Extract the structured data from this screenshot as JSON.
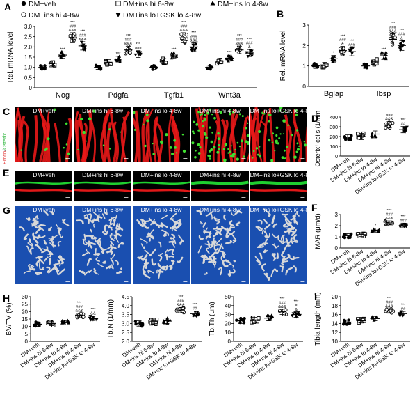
{
  "legend": {
    "items": [
      {
        "label": "DM+veh",
        "marker": "filled-circle"
      },
      {
        "label": "DM+ins hi 6-8w",
        "marker": "open-square"
      },
      {
        "label": "DM+ins lo 4-8w",
        "marker": "filled-triangle"
      },
      {
        "label": "DM+ins hi 4-8w",
        "marker": "open-circle"
      },
      {
        "label": "DM+ins lo+GSK lo 4-8w",
        "marker": "filled-triangle-down"
      }
    ]
  },
  "groups": [
    "DM+veh",
    "DM+ins hi 6-8w",
    "DM+ins lo 4-8w",
    "DM+ins hi 4-8w",
    "DM+ins lo+GSK lo 4-8w"
  ],
  "panels": {
    "A": {
      "letter": "A"
    },
    "B": {
      "letter": "B"
    },
    "C": {
      "letter": "C",
      "stain_red": "Emcn",
      "stain_sep": "/",
      "stain_green": "Osterix"
    },
    "D": {
      "letter": "D"
    },
    "E": {
      "letter": "E"
    },
    "F": {
      "letter": "F"
    },
    "G": {
      "letter": "G"
    },
    "H": {
      "letter": "H"
    },
    "I": {
      "letter": "I"
    }
  },
  "chart_data": [
    {
      "panel": "A",
      "type": "scatter",
      "ylabel": "Rel. mRNA level",
      "ylim": [
        0,
        3.0
      ],
      "yticks": [
        "0",
        "0.5",
        "1.0",
        "1.5",
        "2.0",
        "2.5",
        "3.0"
      ],
      "categories": [
        "Nog",
        "Pdgfa",
        "Tgfb1",
        "Wnt3a"
      ],
      "series": [
        {
          "name": "DM+veh",
          "values": [
            1.0,
            1.0,
            1.0,
            1.0
          ]
        },
        {
          "name": "DM+ins hi 6-8w",
          "values": [
            1.2,
            1.25,
            1.3,
            1.3
          ]
        },
        {
          "name": "DM+ins lo 4-8w",
          "values": [
            1.6,
            1.4,
            1.6,
            1.45
          ]
        },
        {
          "name": "DM+ins hi 4-8w",
          "values": [
            2.45,
            1.85,
            2.45,
            1.85
          ]
        },
        {
          "name": "DM+ins lo+GSK lo 4-8w",
          "values": [
            2.05,
            1.65,
            2.0,
            1.7
          ]
        }
      ],
      "annotations": [
        [
          "",
          "",
          "***",
          "***\n###\n&&&",
          "***\n###\n&&&"
        ],
        [
          "",
          "",
          "***",
          "***\n###\n&&&",
          "***\n###"
        ],
        [
          "",
          "",
          "***",
          "***\n###\n&&&",
          "***\n###\n&&&"
        ],
        [
          "",
          "",
          "***",
          "***\n###\n&&&",
          "***\n###\n&"
        ]
      ]
    },
    {
      "panel": "B",
      "type": "scatter",
      "ylabel": "Rel. mRNA level",
      "ylim": [
        0,
        3
      ],
      "yticks": [
        "0",
        "1",
        "2",
        "3"
      ],
      "categories": [
        "Bglap",
        "Ibsp"
      ],
      "series": [
        {
          "name": "DM+veh",
          "values": [
            1.0,
            1.0
          ]
        },
        {
          "name": "DM+ins hi 6-8w",
          "values": [
            1.05,
            1.2
          ]
        },
        {
          "name": "DM+ins lo 4-8w",
          "values": [
            1.35,
            1.5
          ]
        },
        {
          "name": "DM+ins hi 4-8w",
          "values": [
            1.75,
            2.3
          ]
        },
        {
          "name": "DM+ins lo+GSK lo 4-8w",
          "values": [
            1.7,
            2.0
          ]
        }
      ],
      "annotations": [
        [
          "",
          "",
          "*",
          "***\n###\n&",
          "***\n###"
        ],
        [
          "",
          "",
          "***",
          "***\n###\n&&&",
          "***\n###\n&"
        ]
      ]
    },
    {
      "panel": "D",
      "type": "scatter",
      "ylabel": "Osterix+ cells (1/mm²)",
      "ylim": [
        0,
        400
      ],
      "yticks": [
        "0",
        "100",
        "200",
        "300",
        "400"
      ],
      "categories": [
        "DM+veh",
        "DM+ins hi 6-8w",
        "DM+ins lo 4-8w",
        "DM+ins hi 4-8w",
        "DM+ins lo+GSK lo 4-8w"
      ],
      "values": [
        185,
        200,
        225,
        320,
        270
      ],
      "annotations": [
        "",
        "",
        "",
        "***\n###\n&&&",
        "***\n##"
      ]
    },
    {
      "panel": "F",
      "type": "scatter",
      "ylabel": "MAR (μm/d)",
      "ylim": [
        0,
        3
      ],
      "yticks": [
        "0",
        "1",
        "2",
        "3"
      ],
      "categories": [
        "DM+veh",
        "DM+ins hi 6-8w",
        "DM+ins lo 4-8w",
        "DM+ins hi 4-8w",
        "DM+ins lo+GSK lo 4-8w"
      ],
      "values": [
        1.1,
        1.2,
        1.6,
        2.25,
        2.05
      ],
      "annotations": [
        "",
        "",
        "*",
        "***\n###\n&&&",
        "***\n###"
      ]
    },
    {
      "panel": "H1",
      "type": "scatter",
      "ylabel": "BV/TV (%)",
      "ylim": [
        0,
        30
      ],
      "yticks": [
        "0",
        "5",
        "10",
        "15",
        "20",
        "25",
        "30"
      ],
      "categories": [
        "DM+veh",
        "DM+ins hi 6-8w",
        "DM+ins lo 4-8w",
        "DM+ins hi 4-8w",
        "DM+ins lo+GSK lo 4-8w"
      ],
      "values": [
        11.5,
        12.0,
        12.5,
        17.5,
        15.5
      ],
      "annotations": [
        "",
        "",
        "",
        "***\n###\n&&&",
        "***\n&&"
      ]
    },
    {
      "panel": "H2",
      "type": "scatter",
      "ylabel": "Tb.N (1/mm)",
      "ylim": [
        2.0,
        4.5
      ],
      "yticks": [
        "2.0",
        "2.5",
        "3.0",
        "3.5",
        "4.0",
        "4.5"
      ],
      "categories": [
        "DM+veh",
        "DM+ins hi 6-8w",
        "DM+ins lo 4-8w",
        "DM+ins hi 4-8w",
        "DM+ins lo+GSK lo 4-8w"
      ],
      "values": [
        3.0,
        3.1,
        3.15,
        3.75,
        3.55
      ],
      "annotations": [
        "",
        "",
        "",
        "***\n###\n&&&",
        "***\n##"
      ]
    },
    {
      "panel": "H3",
      "type": "scatter",
      "ylabel": "Tb.Th (um)",
      "ylim": [
        0,
        50
      ],
      "yticks": [
        "0",
        "10",
        "20",
        "30",
        "40",
        "50"
      ],
      "categories": [
        "DM+veh",
        "DM+ins hi 6-8w",
        "DM+ins lo 4-8w",
        "DM+ins hi 4-8w",
        "DM+ins lo+GSK lo 4-8w"
      ],
      "values": [
        23,
        24,
        26,
        33,
        30
      ],
      "annotations": [
        "",
        "",
        "",
        "***\n###\n&&&",
        "***\n#\n&"
      ]
    },
    {
      "panel": "I",
      "type": "scatter",
      "ylabel": "Tibia length (mm)",
      "ylim": [
        10,
        20
      ],
      "yticks": [
        "10",
        "12",
        "14",
        "16",
        "18",
        "20"
      ],
      "categories": [
        "DM+veh",
        "DM+ins hi 6-8w",
        "DM+ins lo 4-8w",
        "DM+ins hi 4-8w",
        "DM+ins lo+GSK lo 4-8w"
      ],
      "values": [
        14.3,
        14.6,
        15.1,
        16.8,
        16.2
      ],
      "annotations": [
        "",
        "",
        "",
        "***\n###\n&&&",
        "***\n##"
      ]
    }
  ]
}
